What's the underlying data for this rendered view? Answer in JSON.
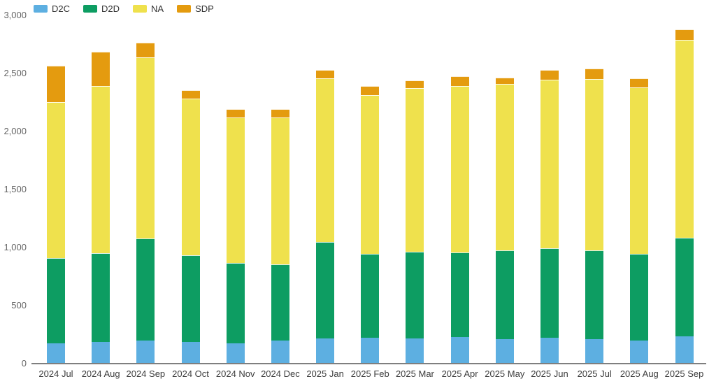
{
  "chart_data": {
    "type": "bar",
    "stacked": true,
    "title": "",
    "xlabel": "",
    "ylabel": "",
    "grid": false,
    "legend_position": "top-left",
    "background_color": "#ffffff",
    "axis_line_color": "#7f7f7f",
    "ylim": [
      0,
      3000
    ],
    "y_ticks": [
      {
        "value": 0,
        "label": "0"
      },
      {
        "value": 500,
        "label": "500"
      },
      {
        "value": 1000,
        "label": "1,000"
      },
      {
        "value": 1500,
        "label": "1,500"
      },
      {
        "value": 2000,
        "label": "2,000"
      },
      {
        "value": 2500,
        "label": "2,500"
      },
      {
        "value": 3000,
        "label": "3,000"
      }
    ],
    "categories": [
      "2024 Jul",
      "2024 Aug",
      "2024 Sep",
      "2024 Oct",
      "2024 Nov",
      "2024 Dec",
      "2025 Jan",
      "2025 Feb",
      "2025 Mar",
      "2025 Apr",
      "2025 May",
      "2025 Jun",
      "2025 Jul",
      "2025 Aug",
      "2025 Sep"
    ],
    "series": [
      {
        "name": "D2C",
        "color": "#5dafe1",
        "values": [
          170,
          180,
          190,
          180,
          170,
          190,
          210,
          215,
          210,
          225,
          205,
          215,
          205,
          190,
          230
        ]
      },
      {
        "name": "D2D",
        "color": "#0d9d62",
        "values": [
          735,
          765,
          880,
          750,
          690,
          660,
          830,
          725,
          745,
          725,
          765,
          775,
          765,
          750,
          850
        ]
      },
      {
        "name": "NA",
        "color": "#efe14d",
        "values": [
          1345,
          1440,
          1565,
          1350,
          1255,
          1265,
          1415,
          1370,
          1410,
          1435,
          1435,
          1450,
          1475,
          1435,
          1705
        ]
      },
      {
        "name": "SDP",
        "color": "#e49b0f",
        "values": [
          310,
          295,
          125,
          70,
          70,
          70,
          70,
          75,
          70,
          85,
          55,
          85,
          90,
          80,
          90
        ]
      }
    ],
    "totals": [
      2560,
      2680,
      2760,
      2350,
      2185,
      2185,
      2525,
      2385,
      2435,
      2470,
      2460,
      2525,
      2535,
      2455,
      2875
    ]
  }
}
